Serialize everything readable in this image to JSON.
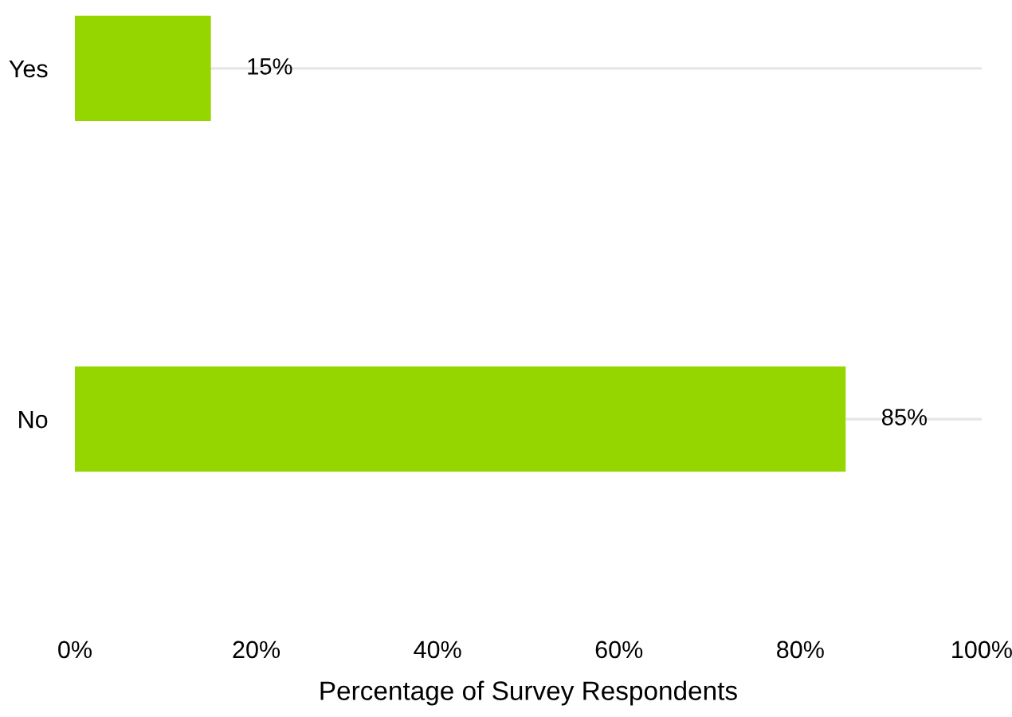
{
  "chart_data": {
    "type": "bar",
    "orientation": "horizontal",
    "xlabel": "Percentage of Survey Respondents",
    "categories": [
      "Yes",
      "No"
    ],
    "values": [
      15,
      85
    ],
    "color": "#95d600",
    "value_labels": [
      "15%",
      "85%"
    ],
    "xlim": [
      0,
      100
    ],
    "xticks": [
      {
        "value": 0,
        "label": "0%"
      },
      {
        "value": 20,
        "label": "20%"
      },
      {
        "value": 40,
        "label": "40%"
      },
      {
        "value": 60,
        "label": "60%"
      },
      {
        "value": 80,
        "label": "80%"
      },
      {
        "value": 100,
        "label": "100%"
      }
    ],
    "grid": "y"
  }
}
